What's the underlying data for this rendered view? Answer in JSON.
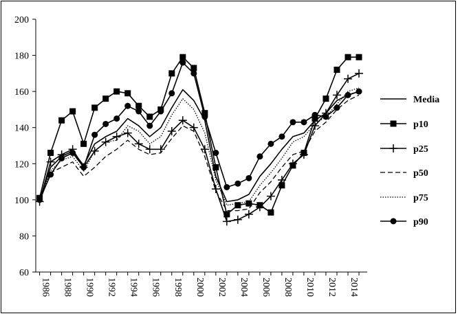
{
  "chart_data": {
    "type": "line",
    "title": "",
    "xlabel": "",
    "ylabel": "",
    "ylim": [
      60,
      200
    ],
    "yticks": [
      60,
      80,
      100,
      120,
      140,
      160,
      180,
      200
    ],
    "xlim": [
      1986,
      2015
    ],
    "xticks": [
      1986,
      1988,
      1990,
      1992,
      1994,
      1996,
      1998,
      2000,
      2002,
      2004,
      2006,
      2008,
      2010,
      2012,
      2014
    ],
    "tick_labels_x": [
      "1986",
      "1988",
      "1990",
      "1992",
      "1994",
      "1996",
      "1998",
      "2000",
      "2002",
      "2004",
      "2006",
      "2008",
      "2010",
      "2012",
      "2014"
    ],
    "tick_labels_y": [
      "60",
      "80",
      "100",
      "120",
      "140",
      "160",
      "180",
      "200"
    ],
    "grid": false,
    "legend_position": "right",
    "x": [
      1986,
      1987,
      1988,
      1989,
      1990,
      1991,
      1992,
      1993,
      1994,
      1995,
      1996,
      1997,
      1998,
      1999,
      2000,
      2001,
      2002,
      2003,
      2004,
      2005,
      2006,
      2007,
      2008,
      2009,
      2010,
      2011,
      2012,
      2013,
      2014,
      2015
    ],
    "series": [
      {
        "name": "Media",
        "style": "solid",
        "marker": "none",
        "values": [
          100,
          118,
          124,
          127,
          119,
          131,
          135,
          138,
          145,
          141,
          135,
          140,
          151,
          161,
          155,
          144,
          113,
          99,
          100,
          103,
          113,
          120,
          128,
          135,
          137,
          144,
          148,
          155,
          158,
          160
        ]
      },
      {
        "name": "p10",
        "style": "solid",
        "marker": "square",
        "values": [
          101,
          126,
          144,
          149,
          131,
          151,
          156,
          160,
          159,
          152,
          146,
          150,
          170,
          179,
          173,
          148,
          118,
          92,
          97,
          98,
          97,
          93,
          108,
          119,
          126,
          145,
          156,
          172,
          179,
          179
        ]
      },
      {
        "name": "p25",
        "style": "solid",
        "marker": "plus",
        "values": [
          99,
          121,
          125,
          128,
          118,
          127,
          132,
          135,
          137,
          131,
          128,
          128,
          138,
          144,
          140,
          128,
          106,
          88,
          89,
          92,
          96,
          102,
          111,
          120,
          125,
          141,
          148,
          158,
          167,
          170
        ]
      },
      {
        "name": "p50",
        "style": "dashed",
        "marker": "none",
        "values": [
          99,
          115,
          118,
          121,
          113,
          118,
          124,
          128,
          133,
          128,
          125,
          126,
          134,
          141,
          138,
          124,
          105,
          94,
          94,
          95,
          104,
          110,
          118,
          125,
          127,
          138,
          143,
          150,
          155,
          158
        ]
      },
      {
        "name": "p75",
        "style": "dotted",
        "marker": "none",
        "values": [
          100,
          116,
          122,
          124,
          116,
          127,
          132,
          133,
          141,
          138,
          131,
          135,
          147,
          156,
          150,
          137,
          111,
          97,
          98,
          99,
          108,
          115,
          123,
          132,
          135,
          142,
          146,
          153,
          160,
          162
        ]
      },
      {
        "name": "p90",
        "style": "solid",
        "marker": "circle",
        "values": [
          100,
          114,
          123,
          126,
          118,
          136,
          142,
          145,
          152,
          149,
          141,
          149,
          159,
          176,
          170,
          146,
          126,
          107,
          109,
          112,
          124,
          131,
          135,
          143,
          143,
          147,
          146,
          151,
          158,
          160
        ]
      }
    ]
  },
  "colors": {
    "line": "#000000",
    "background": "#ffffff",
    "frame": "#000000"
  }
}
